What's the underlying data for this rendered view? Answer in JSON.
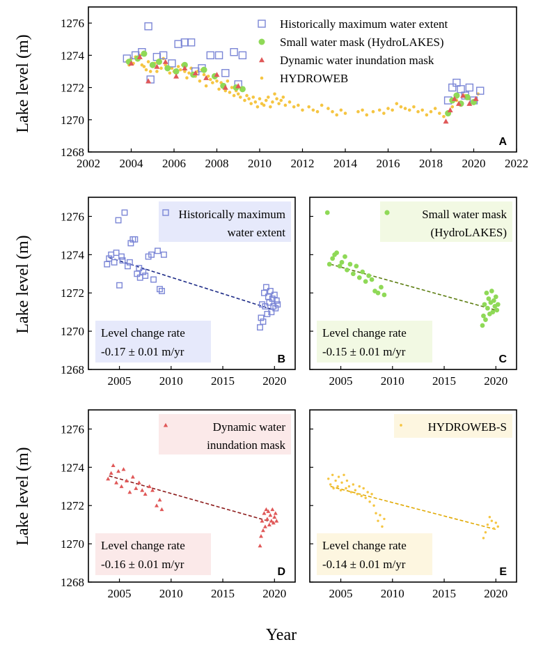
{
  "figure": {
    "ylabel": "Lake level (m)",
    "xlabel": "Year"
  },
  "colors": {
    "blue": "#7b86d6",
    "green": "#8fd957",
    "red": "#e05858",
    "yellow": "#f5c542",
    "blue_line": "#1c2a86",
    "green_line": "#5c7d10",
    "red_line": "#8c1a1a",
    "yellow_line": "#e0a800",
    "blue_box": "#e6e9fb",
    "green_box": "#f2f9e3",
    "red_box": "#fbe9e9",
    "yellow_box": "#fdf6e0",
    "rate_box": "#f3f3f7"
  },
  "chart_data": [
    {
      "id": "A",
      "type": "scatter",
      "panel_label": "A",
      "xlim": [
        2002,
        2022
      ],
      "ylim": [
        1268,
        1277
      ],
      "xticks": [
        2002,
        2004,
        2006,
        2008,
        2010,
        2012,
        2014,
        2016,
        2018,
        2020,
        2022
      ],
      "yticks": [
        1268,
        1270,
        1272,
        1274,
        1276
      ],
      "legend": [
        {
          "label": "Historically maximum water extent",
          "marker": "square",
          "color": "#7b86d6"
        },
        {
          "label": "Small water mask (HydroLAKES)",
          "marker": "circle",
          "color": "#8fd957"
        },
        {
          "label": "Dynamic water inundation mask",
          "marker": "triangle",
          "color": "#e05858"
        },
        {
          "label": "HYDROWEB",
          "marker": "dot",
          "color": "#f5c542"
        }
      ],
      "series": [
        {
          "name": "HYDROWEB",
          "marker": "dot",
          "color": "#f5c542",
          "x": [
            2003.8,
            2003.9,
            2004.0,
            2004.1,
            2004.2,
            2004.3,
            2004.4,
            2004.5,
            2004.6,
            2004.7,
            2004.8,
            2004.9,
            2005.0,
            2005.1,
            2005.2,
            2005.3,
            2005.4,
            2005.5,
            2005.6,
            2005.7,
            2005.8,
            2005.9,
            2006.0,
            2006.1,
            2006.2,
            2006.3,
            2006.4,
            2006.5,
            2006.6,
            2006.7,
            2006.8,
            2006.9,
            2007.0,
            2007.1,
            2007.2,
            2007.3,
            2007.4,
            2007.5,
            2007.6,
            2007.7,
            2007.8,
            2007.9,
            2008.0,
            2008.1,
            2008.2,
            2008.3,
            2008.4,
            2008.5,
            2008.6,
            2008.7,
            2008.8,
            2008.9,
            2009.0,
            2009.1,
            2009.2,
            2009.3,
            2009.4,
            2009.5,
            2009.6,
            2009.7,
            2009.8,
            2009.9,
            2010.0,
            2010.1,
            2010.2,
            2010.3,
            2010.4,
            2010.5,
            2010.6,
            2010.7,
            2010.8,
            2010.9,
            2011.0,
            2011.1,
            2011.2,
            2011.4,
            2011.6,
            2011.8,
            2012.0,
            2012.3,
            2012.5,
            2012.7,
            2012.9,
            2013.2,
            2013.4,
            2013.6,
            2013.8,
            2014.0,
            2014.6,
            2014.8,
            2015.0,
            2015.3,
            2015.6,
            2015.8,
            2016.0,
            2016.2,
            2016.4,
            2016.6,
            2016.8,
            2017.0,
            2017.2,
            2017.4,
            2017.6,
            2017.8,
            2018.0,
            2018.2,
            2018.4,
            2018.6,
            2018.8,
            2019.0,
            2019.2,
            2019.4,
            2019.6,
            2019.8,
            2020.0,
            2020.2
          ],
          "y": [
            1273.6,
            1273.4,
            1273.8,
            1273.5,
            1273.9,
            1273.7,
            1274.0,
            1273.4,
            1273.3,
            1273.1,
            1273.6,
            1273.0,
            1273.3,
            1273.5,
            1273.0,
            1273.7,
            1273.2,
            1273.8,
            1273.4,
            1273.1,
            1272.9,
            1273.2,
            1273.0,
            1272.9,
            1273.3,
            1273.1,
            1273.4,
            1273.0,
            1272.6,
            1272.9,
            1273.2,
            1272.8,
            1272.7,
            1273.0,
            1272.4,
            1273.1,
            1272.8,
            1272.1,
            1272.7,
            1272.5,
            1272.3,
            1272.6,
            1272.4,
            1271.9,
            1272.3,
            1272.1,
            1271.8,
            1272.4,
            1271.7,
            1272.0,
            1271.5,
            1271.8,
            1271.6,
            1271.4,
            1271.9,
            1271.2,
            1271.5,
            1271.3,
            1271.0,
            1271.4,
            1271.1,
            1270.8,
            1271.3,
            1271.0,
            1270.9,
            1271.2,
            1271.4,
            1270.8,
            1271.1,
            1271.6,
            1271.3,
            1271.0,
            1271.2,
            1271.4,
            1270.9,
            1271.1,
            1270.8,
            1270.9,
            1270.6,
            1270.8,
            1270.6,
            1270.5,
            1270.9,
            1270.7,
            1270.5,
            1270.3,
            1270.6,
            1270.4,
            1270.5,
            1270.6,
            1270.3,
            1270.5,
            1270.6,
            1270.4,
            1270.7,
            1270.6,
            1271.0,
            1270.8,
            1270.7,
            1270.6,
            1270.8,
            1270.5,
            1270.6,
            1270.3,
            1270.5,
            1270.7,
            1270.4,
            1270.2,
            1270.5,
            1270.8,
            1271.2,
            1270.9,
            1271.5,
            1271.3,
            1271.0,
            1271.6
          ]
        },
        {
          "name": "Historically maximum water extent",
          "marker": "square",
          "color": "#7b86d6",
          "x": [
            2003.8,
            2004.2,
            2004.5,
            2004.8,
            2004.9,
            2005.2,
            2005.5,
            2005.9,
            2006.2,
            2006.5,
            2006.8,
            2007.0,
            2007.3,
            2007.7,
            2008.1,
            2008.4,
            2008.8,
            2009.0,
            2009.2,
            2018.8,
            2019.0,
            2019.2,
            2019.4,
            2019.6,
            2019.8,
            2020.0,
            2020.3
          ],
          "y": [
            1273.8,
            1274.0,
            1274.2,
            1275.8,
            1272.5,
            1273.9,
            1274.0,
            1273.5,
            1274.7,
            1274.8,
            1274.8,
            1273.0,
            1273.2,
            1274.0,
            1274.0,
            1272.9,
            1274.2,
            1272.2,
            1274.0,
            1271.2,
            1272.0,
            1272.3,
            1271.9,
            1271.5,
            1272.0,
            1271.2,
            1271.8
          ]
        },
        {
          "name": "Small water mask (HydroLAKES)",
          "marker": "circle",
          "color": "#8fd957",
          "x": [
            2003.9,
            2004.3,
            2004.6,
            2005.0,
            2005.3,
            2005.7,
            2006.1,
            2006.5,
            2006.9,
            2007.4,
            2007.9,
            2008.3,
            2008.9,
            2009.2,
            2018.8,
            2019.0,
            2019.2,
            2019.4,
            2019.7,
            2020.0
          ],
          "y": [
            1273.6,
            1273.8,
            1274.1,
            1273.4,
            1273.6,
            1273.2,
            1273.0,
            1273.4,
            1272.8,
            1273.1,
            1272.7,
            1272.1,
            1272.0,
            1271.9,
            1270.4,
            1271.2,
            1271.5,
            1271.0,
            1271.4,
            1271.1
          ]
        },
        {
          "name": "Dynamic water inundation mask",
          "marker": "triangle",
          "color": "#e05858",
          "x": [
            2004.0,
            2004.4,
            2004.8,
            2005.2,
            2005.6,
            2006.1,
            2006.5,
            2007.0,
            2007.5,
            2008.0,
            2008.4,
            2009.0,
            2018.7,
            2018.9,
            2019.1,
            2019.3,
            2019.5,
            2019.8,
            2020.1
          ],
          "y": [
            1273.5,
            1273.9,
            1272.4,
            1273.3,
            1273.6,
            1272.7,
            1273.2,
            1272.9,
            1272.6,
            1272.8,
            1272.0,
            1272.1,
            1269.9,
            1270.6,
            1271.3,
            1271.0,
            1271.5,
            1271.0,
            1271.3
          ]
        }
      ]
    },
    {
      "id": "B",
      "type": "scatter",
      "panel_label": "B",
      "xlim": [
        2002,
        2022
      ],
      "ylim": [
        1268,
        1277
      ],
      "xticks": [
        2005,
        2010,
        2015,
        2020
      ],
      "yticks": [
        1268,
        1270,
        1272,
        1274,
        1276
      ],
      "legend_label": [
        "Historically maximum",
        "water extent"
      ],
      "rate_title": "Level change rate",
      "rate_value": "-0.17 ± 0.01 m/yr",
      "marker": "square",
      "color": "#7b86d6",
      "line_color": "#1c2a86",
      "box_color": "#e6e9fb",
      "trend": {
        "x": [
          2004,
          2020
        ],
        "y": [
          1273.85,
          1271.1
        ]
      },
      "x": [
        2003.8,
        2004.0,
        2004.2,
        2004.5,
        2004.7,
        2004.9,
        2005.0,
        2005.2,
        2005.3,
        2005.5,
        2005.8,
        2006.0,
        2006.1,
        2006.3,
        2006.5,
        2006.7,
        2006.9,
        2007.0,
        2007.3,
        2007.5,
        2007.8,
        2008.1,
        2008.3,
        2008.7,
        2008.9,
        2009.1,
        2009.3,
        2018.6,
        2018.7,
        2018.8,
        2018.9,
        2019.0,
        2019.1,
        2019.2,
        2019.3,
        2019.4,
        2019.5,
        2019.6,
        2019.7,
        2019.8,
        2019.9,
        2020.0,
        2020.1,
        2020.2,
        2020.3
      ],
      "y": [
        1273.5,
        1273.8,
        1274.0,
        1273.6,
        1274.1,
        1275.8,
        1272.4,
        1273.9,
        1273.7,
        1276.2,
        1273.4,
        1273.6,
        1274.6,
        1274.8,
        1274.8,
        1273.0,
        1273.3,
        1272.8,
        1273.1,
        1272.9,
        1273.9,
        1274.0,
        1272.7,
        1274.2,
        1272.2,
        1272.1,
        1274.0,
        1270.2,
        1270.7,
        1271.4,
        1270.5,
        1272.0,
        1271.3,
        1272.3,
        1270.9,
        1271.8,
        1271.5,
        1272.1,
        1271.0,
        1271.7,
        1271.3,
        1271.9,
        1271.2,
        1271.6,
        1271.4
      ]
    },
    {
      "id": "C",
      "type": "scatter",
      "panel_label": "C",
      "xlim": [
        2002,
        2022
      ],
      "ylim": [
        1268,
        1277
      ],
      "xticks": [
        2005,
        2010,
        2015,
        2020
      ],
      "yticks": [
        1268,
        1270,
        1272,
        1274,
        1276
      ],
      "legend_label": [
        "Small water mask",
        "(HydroLAKES)"
      ],
      "rate_title": "Level change rate",
      "rate_value": "-0.15 ± 0.01 m/yr",
      "marker": "circle",
      "color": "#8fd957",
      "line_color": "#5c7d10",
      "box_color": "#f2f9e3",
      "trend": {
        "x": [
          2004,
          2020
        ],
        "y": [
          1273.5,
          1271.1
        ]
      },
      "x": [
        2003.7,
        2003.9,
        2004.2,
        2004.4,
        2004.6,
        2004.9,
        2005.1,
        2005.4,
        2005.6,
        2005.9,
        2006.2,
        2006.5,
        2006.8,
        2007.1,
        2007.4,
        2007.7,
        2008.0,
        2008.3,
        2008.6,
        2008.9,
        2009.2,
        2018.7,
        2018.8,
        2018.9,
        2019.0,
        2019.1,
        2019.2,
        2019.3,
        2019.4,
        2019.5,
        2019.6,
        2019.7,
        2019.8,
        2019.9,
        2020.0,
        2020.1,
        2020.2
      ],
      "y": [
        1276.2,
        1273.5,
        1273.8,
        1274.0,
        1274.1,
        1273.4,
        1273.6,
        1273.9,
        1273.2,
        1273.5,
        1273.0,
        1273.4,
        1272.8,
        1273.1,
        1272.6,
        1272.9,
        1272.7,
        1272.1,
        1272.0,
        1272.3,
        1271.9,
        1270.3,
        1270.8,
        1271.4,
        1270.6,
        1272.0,
        1271.2,
        1271.7,
        1270.9,
        1271.5,
        1272.1,
        1271.0,
        1271.6,
        1271.3,
        1271.8,
        1271.1,
        1271.4
      ]
    },
    {
      "id": "D",
      "type": "scatter",
      "panel_label": "D",
      "xlim": [
        2002,
        2022
      ],
      "ylim": [
        1268,
        1277
      ],
      "xticks": [
        2005,
        2010,
        2015,
        2020
      ],
      "yticks": [
        1268,
        1270,
        1272,
        1274,
        1276
      ],
      "legend_label": [
        "Dynamic water",
        "inundation mask"
      ],
      "rate_title": "Level change rate",
      "rate_value": "-0.16 ± 0.01 m/yr",
      "marker": "triangle",
      "color": "#e05858",
      "line_color": "#8c1a1a",
      "box_color": "#fbe9e9",
      "trend": {
        "x": [
          2004,
          2020
        ],
        "y": [
          1273.55,
          1271.1
        ]
      },
      "x": [
        2003.9,
        2004.2,
        2004.4,
        2004.7,
        2004.9,
        2005.2,
        2005.4,
        2005.7,
        2006.0,
        2006.3,
        2006.6,
        2006.9,
        2007.2,
        2007.5,
        2007.9,
        2008.2,
        2008.6,
        2008.9,
        2009.1,
        2018.6,
        2018.7,
        2018.8,
        2018.9,
        2019.0,
        2019.1,
        2019.2,
        2019.3,
        2019.4,
        2019.5,
        2019.6,
        2019.7,
        2019.8,
        2019.9,
        2020.0,
        2020.1,
        2020.2
      ],
      "y": [
        1273.4,
        1273.7,
        1274.1,
        1273.2,
        1273.8,
        1273.0,
        1273.9,
        1273.3,
        1272.7,
        1273.5,
        1272.9,
        1273.2,
        1272.8,
        1272.6,
        1273.0,
        1272.8,
        1272.0,
        1272.3,
        1271.8,
        1269.9,
        1270.4,
        1271.2,
        1270.7,
        1271.6,
        1270.9,
        1271.8,
        1271.3,
        1271.7,
        1271.0,
        1271.5,
        1271.2,
        1271.8,
        1271.1,
        1271.4,
        1271.6,
        1271.2
      ]
    },
    {
      "id": "E",
      "type": "scatter",
      "panel_label": "E",
      "xlim": [
        2002,
        2022
      ],
      "ylim": [
        1268,
        1277
      ],
      "xticks": [
        2005,
        2010,
        2015,
        2020
      ],
      "yticks": [
        1268,
        1270,
        1272,
        1274,
        1276
      ],
      "legend_label": [
        "HYDROWEB-S"
      ],
      "rate_title": "Level change rate",
      "rate_value": "-0.14 ± 0.01 m/yr",
      "marker": "dot",
      "color": "#f5c542",
      "line_color": "#e0a800",
      "box_color": "#fdf6e0",
      "trend": {
        "x": [
          2004,
          2020
        ],
        "y": [
          1273.0,
          1270.75
        ]
      },
      "x": [
        2003.8,
        2004.0,
        2004.2,
        2004.3,
        2004.5,
        2004.7,
        2004.8,
        2005.0,
        2005.1,
        2005.3,
        2005.5,
        2005.6,
        2005.8,
        2006.0,
        2006.2,
        2006.4,
        2006.6,
        2006.8,
        2007.0,
        2007.2,
        2007.4,
        2007.6,
        2007.8,
        2008.0,
        2008.2,
        2008.4,
        2008.6,
        2008.8,
        2009.0,
        2009.2,
        2018.8,
        2019.0,
        2019.2,
        2019.4,
        2019.6,
        2019.8,
        2020.0,
        2020.2
      ],
      "y": [
        1273.4,
        1273.1,
        1273.6,
        1272.9,
        1273.3,
        1273.0,
        1273.5,
        1272.8,
        1273.2,
        1273.6,
        1272.9,
        1273.3,
        1273.0,
        1272.7,
        1273.1,
        1272.8,
        1272.6,
        1273.0,
        1272.5,
        1272.9,
        1272.4,
        1272.7,
        1272.2,
        1272.6,
        1272.0,
        1271.6,
        1271.2,
        1271.5,
        1270.9,
        1271.3,
        1270.3,
        1270.6,
        1271.0,
        1271.4,
        1271.2,
        1270.8,
        1271.1,
        1270.9
      ]
    }
  ]
}
